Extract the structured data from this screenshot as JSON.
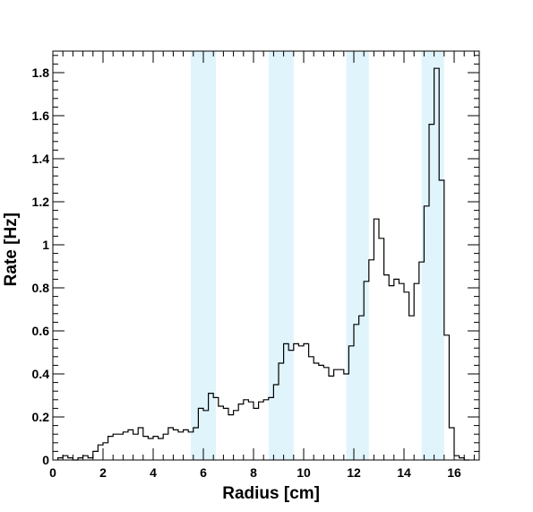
{
  "chart_data": {
    "type": "histogram",
    "title": "",
    "xlabel": "Radius [cm]",
    "ylabel": "Rate [Hz]",
    "xlim": [
      0,
      17
    ],
    "ylim": [
      0,
      1.9
    ],
    "xticks": [
      0,
      2,
      4,
      6,
      8,
      10,
      12,
      14,
      16
    ],
    "yticks": [
      0,
      0.2,
      0.4,
      0.6,
      0.8,
      1,
      1.2,
      1.4,
      1.6,
      1.8
    ],
    "grid": false,
    "legend": "none",
    "bin_width": 0.2,
    "x_start": 0.2,
    "series": [
      {
        "values": [
          0.01,
          0.02,
          0.01,
          0.0,
          0.01,
          0.02,
          0.01,
          0.04,
          0.07,
          0.08,
          0.11,
          0.12,
          0.12,
          0.13,
          0.14,
          0.12,
          0.15,
          0.11,
          0.1,
          0.11,
          0.1,
          0.12,
          0.15,
          0.14,
          0.13,
          0.14,
          0.13,
          0.15,
          0.24,
          0.23,
          0.31,
          0.29,
          0.25,
          0.24,
          0.21,
          0.23,
          0.26,
          0.28,
          0.27,
          0.24,
          0.27,
          0.28,
          0.29,
          0.35,
          0.45,
          0.54,
          0.51,
          0.54,
          0.53,
          0.54,
          0.48,
          0.45,
          0.44,
          0.43,
          0.39,
          0.42,
          0.42,
          0.4,
          0.53,
          0.63,
          0.67,
          0.83,
          0.93,
          1.12,
          1.03,
          0.86,
          0.81,
          0.84,
          0.82,
          0.78,
          0.67,
          0.82,
          0.92,
          1.18,
          1.56,
          1.82,
          1.3,
          0.58,
          0.15,
          0.02,
          0.01,
          0.0
        ]
      }
    ],
    "shaded_bands": [
      [
        5.5,
        6.5
      ],
      [
        8.6,
        9.6
      ],
      [
        11.7,
        12.6
      ],
      [
        14.7,
        15.6
      ]
    ],
    "colors": {
      "band": "#e0f4fc",
      "line": "#000000",
      "axis": "#000000",
      "frame": "#000000"
    }
  }
}
